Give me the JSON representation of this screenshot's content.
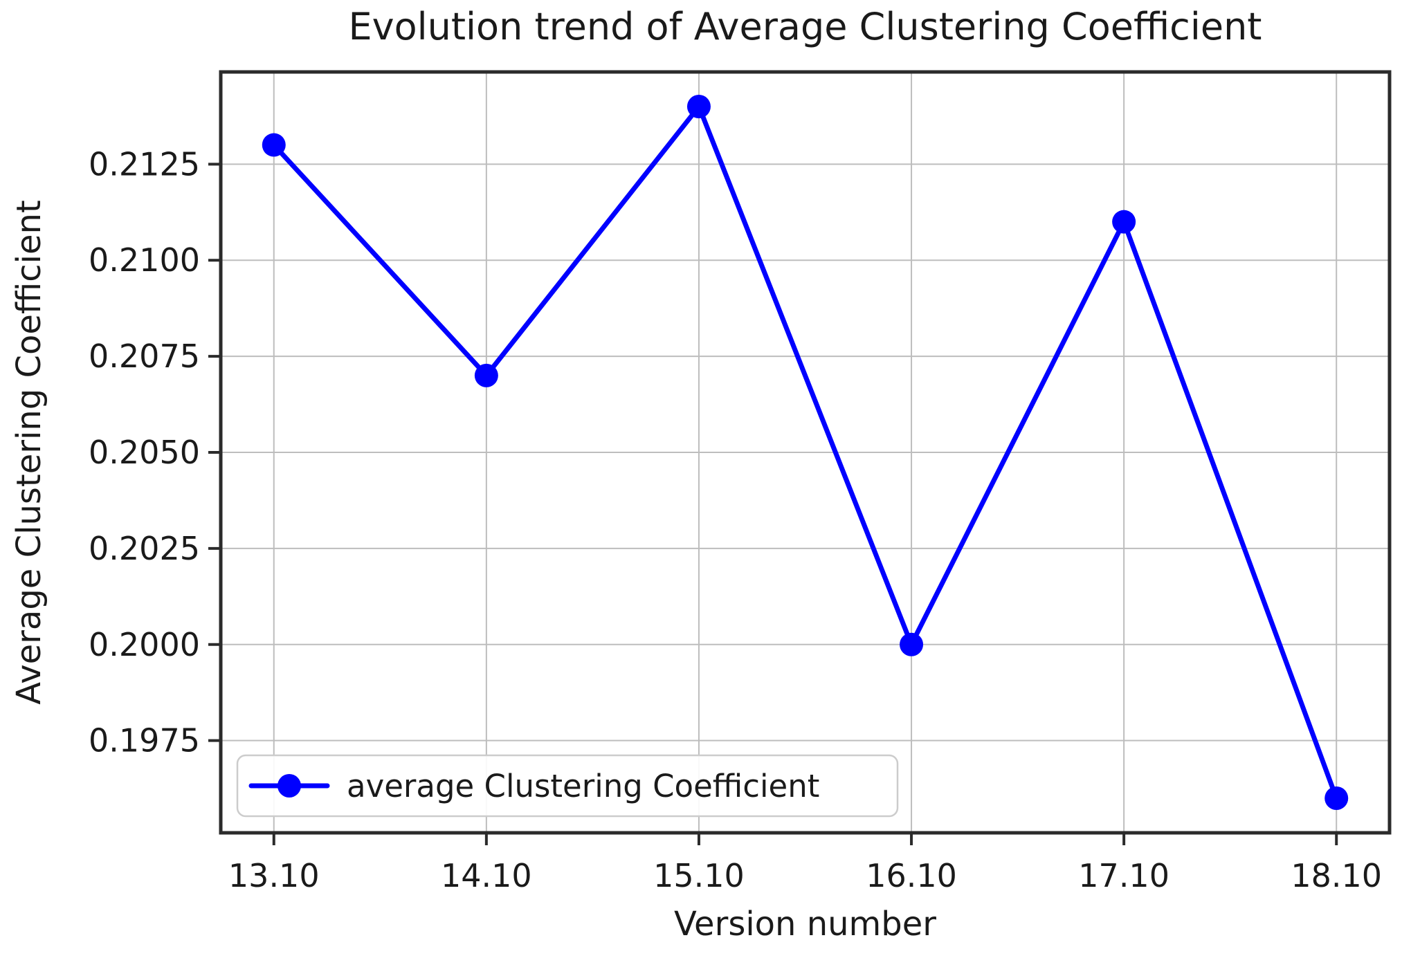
{
  "chart_data": {
    "type": "line",
    "title": "Evolution trend of Average Clustering Coefficient",
    "xlabel": "Version number",
    "ylabel": "Average Clustering Coefficient",
    "categories": [
      "13.10",
      "14.10",
      "15.10",
      "16.10",
      "17.10",
      "18.10"
    ],
    "series": [
      {
        "name": "average Clustering Coefficient",
        "values": [
          0.213,
          0.207,
          0.214,
          0.2,
          0.211,
          0.196
        ]
      }
    ],
    "y_ticks": {
      "values": [
        0.2125,
        0.21,
        0.2075,
        0.205,
        0.2025,
        0.2,
        0.1975
      ],
      "labels": [
        "0.2125",
        "0.2100",
        "0.2075",
        "0.2050",
        "0.2025",
        "0.2000",
        "0.1975"
      ]
    },
    "ylim": [
      0.1951,
      0.2149
    ],
    "x_margin_units": 0.25,
    "grid": true,
    "legend": {
      "label": "average Clustering Coefficient",
      "position": "lower left"
    },
    "colors": {
      "line": "#0000FF",
      "marker": "#0000FF",
      "grid": "#BDBDBD",
      "spine": "#2B2B2B",
      "text": "#1A1A1A",
      "legend_border": "#CCCCCC",
      "legend_background": "#FFFFFF",
      "background": "#FFFFFF"
    }
  }
}
